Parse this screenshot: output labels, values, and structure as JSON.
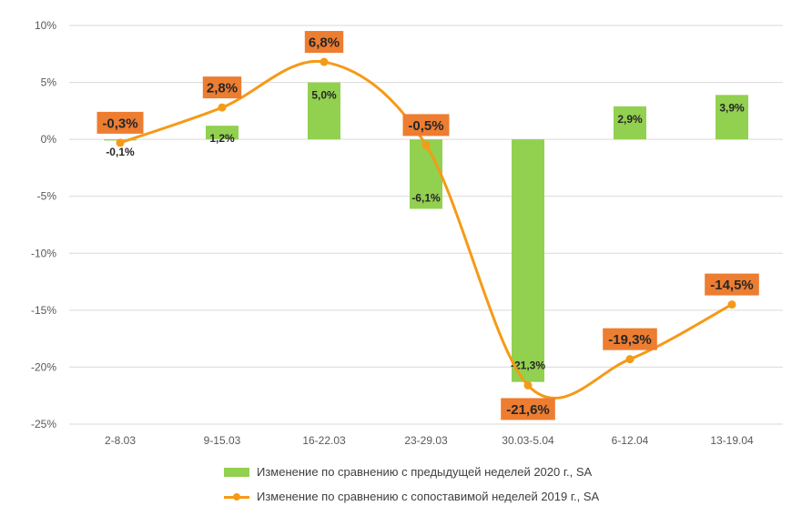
{
  "chart_data": {
    "type": "bar",
    "categories": [
      "2-8.03",
      "9-15.03",
      "16-22.03",
      "23-29.03",
      "30.03-5.04",
      "6-12.04",
      "13-19.04"
    ],
    "ylim": [
      -25,
      10
    ],
    "yticks": [
      "10%",
      "5%",
      "0%",
      "-5%",
      "-10%",
      "-15%",
      "-20%",
      "-25%"
    ],
    "ytick_values": [
      10,
      5,
      0,
      -5,
      -10,
      -15,
      -20,
      -25
    ],
    "series": [
      {
        "name": "Изменение по сравнению с предыдущей неделей 2020 г., SA",
        "kind": "bar",
        "color": "#92d050",
        "values": [
          -0.1,
          1.2,
          5.0,
          -6.1,
          -21.3,
          2.9,
          3.9
        ],
        "labels": [
          "-0,1%",
          "1,2%",
          "5,0%",
          "-6,1%",
          "-21,3%",
          "2,9%",
          "3,9%"
        ]
      },
      {
        "name": "Изменение по сравнению с сопоставимой неделей 2019 г., SA",
        "kind": "line",
        "color": "#f59a17",
        "label_bg": "#ed7d31",
        "values": [
          -0.3,
          2.8,
          6.8,
          -0.5,
          -21.6,
          -19.3,
          -14.5
        ],
        "labels": [
          "-0,3%",
          "2,8%",
          "6,8%",
          "-0,5%",
          "-21,6%",
          "-19,3%",
          "-14,5%"
        ]
      }
    ],
    "gridlines": true,
    "legend_position": "bottom"
  }
}
